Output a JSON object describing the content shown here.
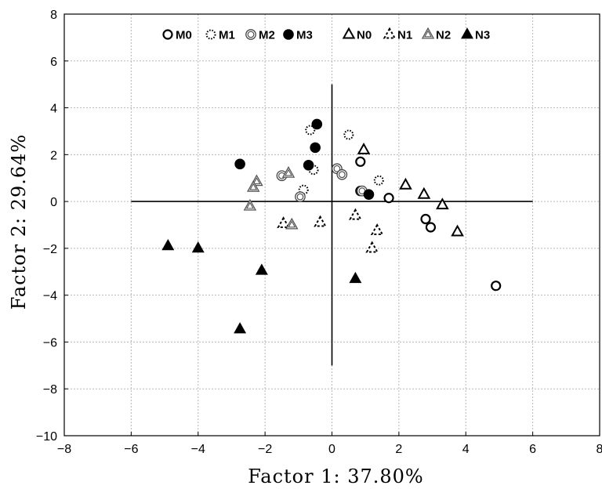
{
  "chart_data": {
    "type": "scatter",
    "xlabel": "Factor 1: 37.80%",
    "ylabel": "Factor 2: 29.64%",
    "xlim": [
      -8,
      8
    ],
    "ylim": [
      -10,
      8
    ],
    "xticks": [
      -8,
      -6,
      -4,
      -2,
      0,
      2,
      4,
      6,
      8
    ],
    "yticks": [
      -10,
      -8,
      -6,
      -4,
      -2,
      0,
      2,
      4,
      6,
      8
    ],
    "xtick_labels": [
      "−8",
      "−6",
      "−4",
      "−2",
      "0",
      "2",
      "4",
      "6",
      "8"
    ],
    "ytick_labels": [
      "−10",
      "−8",
      "−6",
      "−4",
      "−2",
      "0",
      "2",
      "4",
      "6",
      "8"
    ],
    "grid": true,
    "legend_position": "top",
    "reference_lines": {
      "horizontal": {
        "y": 0,
        "x_from": -6,
        "x_to": 6
      },
      "vertical": {
        "x": 0,
        "y_from": -7,
        "y_to": 5
      }
    },
    "series": [
      {
        "name": "M0",
        "marker": "circle-open",
        "points": [
          [
            0.85,
            1.7
          ],
          [
            0.85,
            0.45
          ],
          [
            1.7,
            0.15
          ],
          [
            2.8,
            -0.75
          ],
          [
            2.95,
            -1.1
          ],
          [
            4.9,
            -3.6
          ]
        ]
      },
      {
        "name": "M1",
        "marker": "circle-dotted",
        "points": [
          [
            0.5,
            2.85
          ],
          [
            -0.65,
            3.05
          ],
          [
            -0.55,
            1.35
          ],
          [
            -0.85,
            0.5
          ],
          [
            1.4,
            0.9
          ]
        ]
      },
      {
        "name": "M2",
        "marker": "circle-double",
        "points": [
          [
            -1.5,
            1.1
          ],
          [
            -0.95,
            0.2
          ],
          [
            0.15,
            1.4
          ],
          [
            0.3,
            1.15
          ],
          [
            0.9,
            0.45
          ]
        ]
      },
      {
        "name": "M3",
        "marker": "circle-filled",
        "points": [
          [
            -0.45,
            3.3
          ],
          [
            -0.5,
            2.3
          ],
          [
            -0.7,
            1.55
          ],
          [
            -2.75,
            1.6
          ],
          [
            1.1,
            0.3
          ]
        ]
      },
      {
        "name": "N0",
        "marker": "triangle-open",
        "points": [
          [
            0.95,
            2.2
          ],
          [
            2.2,
            0.7
          ],
          [
            2.75,
            0.3
          ],
          [
            3.3,
            -0.15
          ],
          [
            3.75,
            -1.3
          ]
        ]
      },
      {
        "name": "N1",
        "marker": "triangle-dashed",
        "points": [
          [
            -1.45,
            -0.95
          ],
          [
            -0.35,
            -0.9
          ],
          [
            0.7,
            -0.6
          ],
          [
            1.35,
            -1.25
          ],
          [
            1.2,
            -2.0
          ]
        ]
      },
      {
        "name": "N2",
        "marker": "triangle-double",
        "points": [
          [
            -2.25,
            0.85
          ],
          [
            -2.35,
            0.6
          ],
          [
            -2.45,
            -0.2
          ],
          [
            -1.3,
            1.2
          ],
          [
            -1.2,
            -1.0
          ]
        ]
      },
      {
        "name": "N3",
        "marker": "triangle-filled",
        "points": [
          [
            -4.9,
            -1.9
          ],
          [
            -4.0,
            -2.0
          ],
          [
            -2.1,
            -2.95
          ],
          [
            -2.75,
            -5.45
          ],
          [
            0.7,
            -3.3
          ]
        ]
      }
    ]
  }
}
